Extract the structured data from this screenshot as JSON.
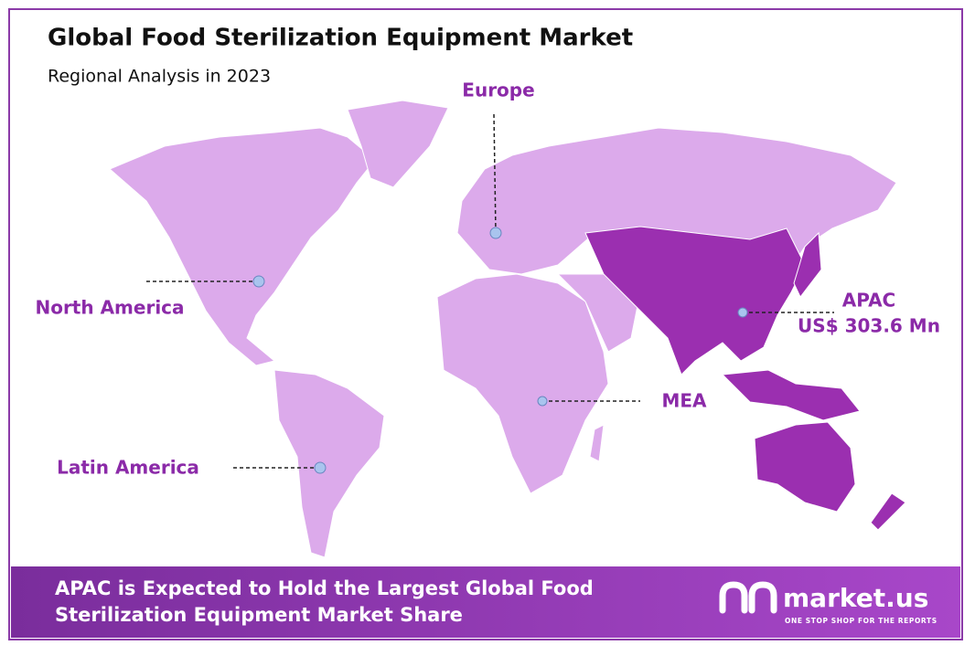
{
  "header": {
    "title": "Global Food Sterilization Equipment Market",
    "subtitle": "Regional Analysis in 2023"
  },
  "regions": [
    {
      "label": "Europe"
    },
    {
      "label": "North America"
    },
    {
      "label": "APAC",
      "value": "US$ 303.6 Mn"
    },
    {
      "label": "MEA"
    },
    {
      "label": "Latin America"
    }
  ],
  "footer": {
    "lines": [
      "APAC is Expected to Hold the Largest Global Food",
      "Sterilization Equipment Market Share"
    ],
    "logo": {
      "name": "market.us",
      "tagline": "ONE STOP SHOP FOR THE REPORTS"
    }
  }
}
